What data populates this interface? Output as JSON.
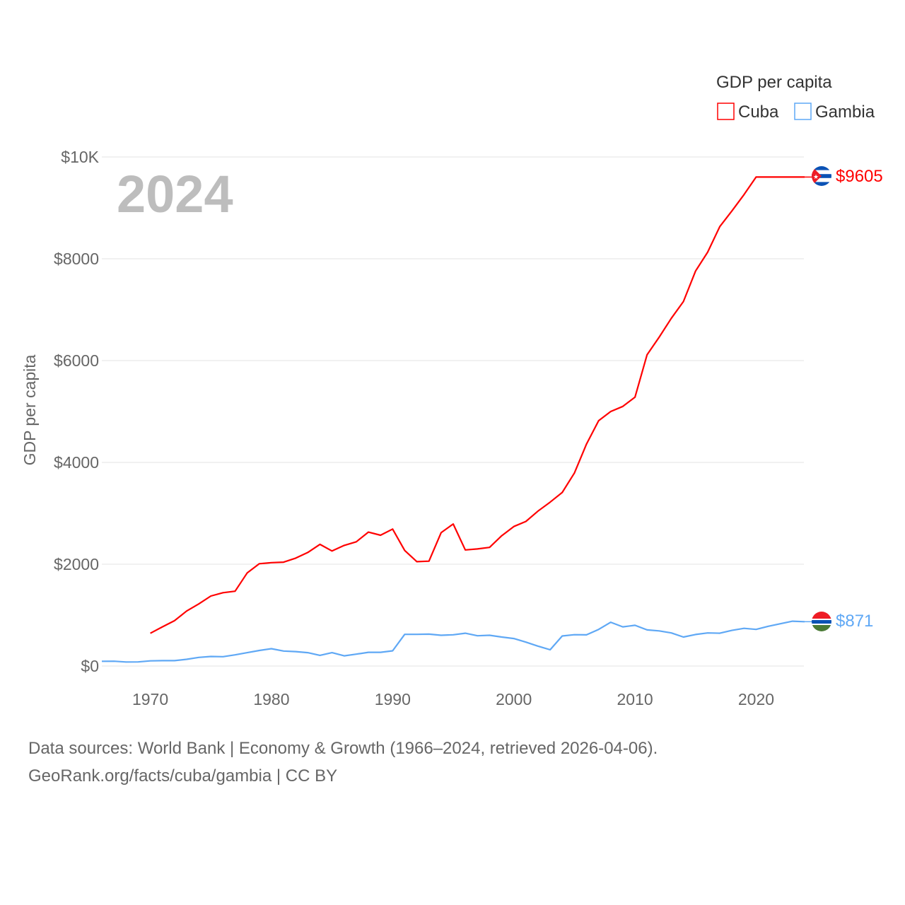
{
  "chart_data": {
    "type": "line",
    "title": "GDP per capita",
    "ylabel": "GDP per capita",
    "xlabel": "",
    "ylim": [
      0,
      10000
    ],
    "xlim": [
      1966,
      2024
    ],
    "grid": true,
    "legend_placement": "top-right",
    "year_label": "2024",
    "x_ticks": [
      1970,
      1980,
      1990,
      2000,
      2010,
      2020
    ],
    "x_tick_labels": [
      "1970",
      "1980",
      "1990",
      "2000",
      "2010",
      "2020"
    ],
    "y_ticks": [
      0,
      2000,
      4000,
      6000,
      8000,
      10000
    ],
    "y_tick_labels": [
      "$0",
      "$2000",
      "$4000",
      "$6000",
      "$8000",
      "$10K"
    ],
    "series": [
      {
        "name": "Cuba",
        "color": "#ff0000",
        "end_label": "$9605",
        "flag": "cuba-flag",
        "x": [
          1970,
          1971,
          1972,
          1973,
          1974,
          1975,
          1976,
          1977,
          1978,
          1979,
          1980,
          1981,
          1982,
          1983,
          1984,
          1985,
          1986,
          1987,
          1988,
          1989,
          1990,
          1991,
          1992,
          1993,
          1994,
          1995,
          1996,
          1997,
          1998,
          1999,
          2000,
          2001,
          2002,
          2003,
          2004,
          2005,
          2006,
          2007,
          2008,
          2009,
          2010,
          2011,
          2012,
          2013,
          2014,
          2015,
          2016,
          2017,
          2018,
          2019,
          2020,
          2021,
          2022,
          2023,
          2024
        ],
        "values": [
          643,
          770,
          890,
          1080,
          1220,
          1375,
          1440,
          1470,
          1830,
          2010,
          2030,
          2040,
          2120,
          2230,
          2390,
          2260,
          2370,
          2440,
          2630,
          2570,
          2690,
          2270,
          2050,
          2060,
          2620,
          2790,
          2280,
          2300,
          2330,
          2560,
          2740,
          2840,
          3045,
          3220,
          3410,
          3790,
          4360,
          4820,
          5000,
          5100,
          5280,
          6115,
          6460,
          6830,
          7160,
          7760,
          8130,
          8630,
          8940,
          9260,
          9605,
          9605,
          9605,
          9605,
          9605
        ]
      },
      {
        "name": "Gambia",
        "color": "#5fa8f5",
        "end_label": "$871",
        "flag": "gambia-flag",
        "x": [
          1966,
          1967,
          1968,
          1969,
          1970,
          1971,
          1972,
          1973,
          1974,
          1975,
          1976,
          1977,
          1978,
          1979,
          1980,
          1981,
          1982,
          1983,
          1984,
          1985,
          1986,
          1987,
          1988,
          1989,
          1990,
          1991,
          1992,
          1993,
          1994,
          1995,
          1996,
          1997,
          1998,
          1999,
          2000,
          2001,
          2002,
          2003,
          2004,
          2005,
          2006,
          2007,
          2008,
          2009,
          2010,
          2011,
          2012,
          2013,
          2014,
          2015,
          2016,
          2017,
          2018,
          2019,
          2020,
          2021,
          2022,
          2023,
          2024
        ],
        "values": [
          93,
          95,
          79,
          80,
          102,
          105,
          106,
          132,
          170,
          188,
          183,
          220,
          262,
          305,
          340,
          294,
          284,
          262,
          210,
          262,
          200,
          233,
          270,
          270,
          298,
          622,
          622,
          627,
          604,
          614,
          645,
          595,
          604,
          570,
          540,
          470,
          390,
          320,
          590,
          615,
          612,
          720,
          860,
          770,
          800,
          710,
          690,
          650,
          570,
          620,
          650,
          645,
          700,
          740,
          720,
          780,
          830,
          880,
          871
        ]
      }
    ]
  },
  "footer": {
    "line1": "Data sources: World Bank | Economy & Growth (1966–2024, retrieved 2026-04-06).",
    "line2": "GeoRank.org/facts/cuba/gambia | CC BY"
  }
}
